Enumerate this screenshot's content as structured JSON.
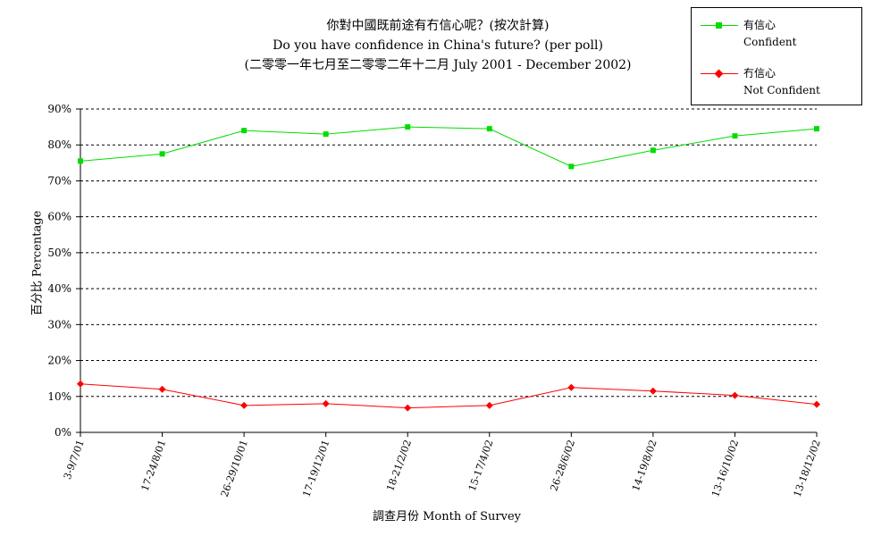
{
  "chart_data": {
    "type": "line",
    "title": "你對中國既前途有冇信心呢？(按次計算)",
    "subtitle": "Do you have confidence in China's future? (per poll)",
    "period": "(二零零一年七月至二零零二年十二月 July 2001 - December 2002)",
    "xlabel": "調查月份 Month of Survey",
    "ylabel": "百分比 Percentage",
    "categories": [
      "3-9/7/01",
      "17-24/8/01",
      "26-29/10/01",
      "17-19/12/01",
      "18-21/2/02",
      "15-17/4/02",
      "26-28/6/02",
      "14-19/8/02",
      "13-16/10/02",
      "13-18/12/02"
    ],
    "y_ticks": [
      "0%",
      "10%",
      "20%",
      "30%",
      "40%",
      "50%",
      "60%",
      "70%",
      "80%",
      "90%"
    ],
    "ylim": [
      0,
      90
    ],
    "grid": true,
    "legend_position": "top-right",
    "series": [
      {
        "name": "有信心 Confident",
        "name_zh": "有信心",
        "name_en": "Confident",
        "color": "#00dd00",
        "marker": "square",
        "values": [
          75.5,
          77.5,
          84,
          83,
          85,
          84.5,
          74,
          78.5,
          82.5,
          84.5
        ]
      },
      {
        "name": "冇信心 Not Confident",
        "name_zh": "冇信心",
        "name_en": "Not Confident",
        "color": "#ff0000",
        "marker": "diamond",
        "values": [
          13.5,
          12,
          7.5,
          8,
          6.8,
          7.5,
          12.5,
          11.5,
          10.3,
          7.8
        ]
      }
    ]
  }
}
